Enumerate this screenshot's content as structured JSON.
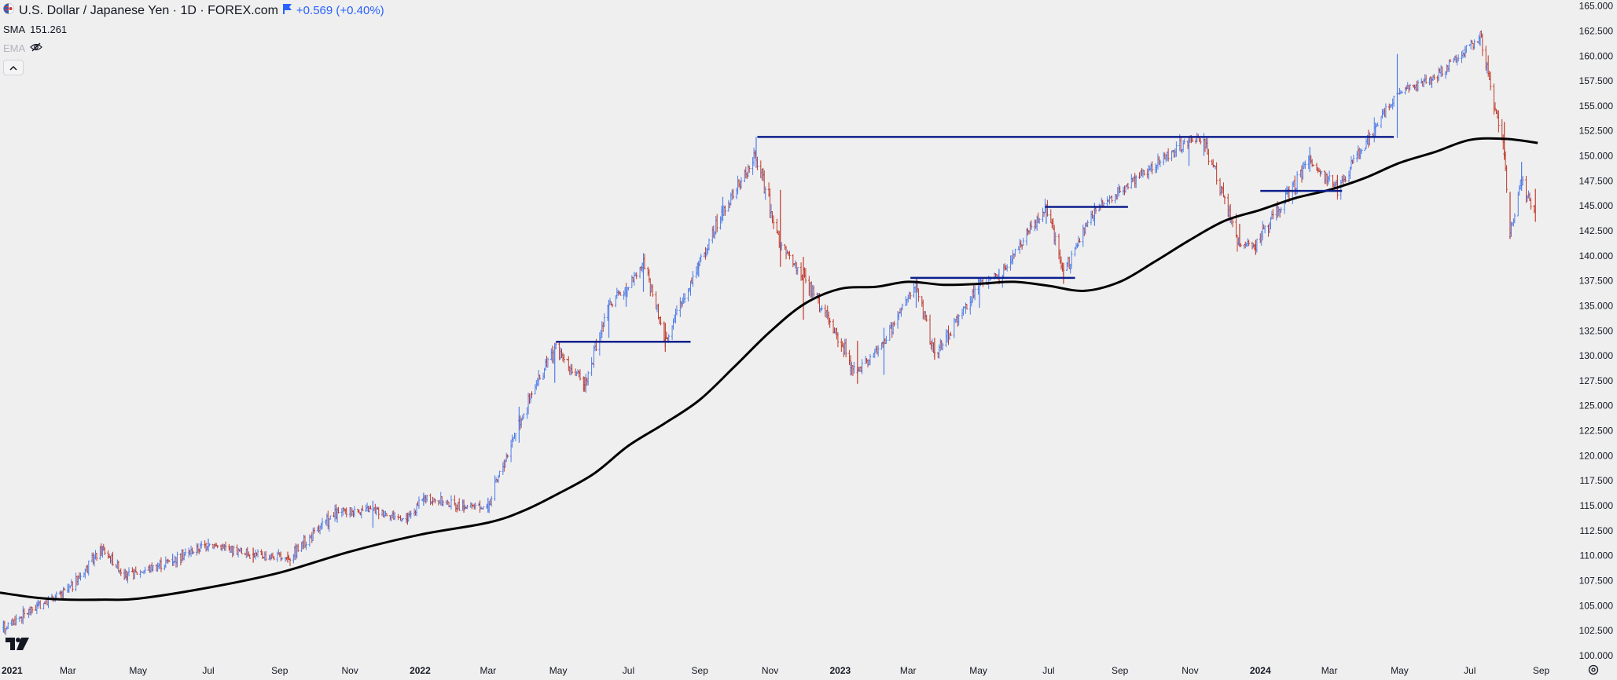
{
  "header": {
    "symbol_title": "U.S. Dollar / Japanese Yen · 1D · FOREX.com",
    "change": "+0.569 (+0.40%)",
    "sma_label": "SMA",
    "sma_value": "151.261",
    "ema_label": "EMA"
  },
  "colors": {
    "background": "#efefef",
    "up_bar": "#4f7de8",
    "down_bar": "#c0392b",
    "sma_line": "#000000",
    "levels": "#0d1f8c",
    "axis_text": "#131722",
    "change_text": "#2962ff"
  },
  "icons": [
    "us-jp-flag-icon",
    "bookmark-flag-icon",
    "eye-off-icon",
    "chevron-up-icon",
    "tradingview-logo-icon",
    "settings-icon"
  ],
  "chart_data": {
    "type": "line",
    "subtype": "ohlc-bars-with-moving-average",
    "title": "U.S. Dollar / Japanese Yen · 1D · FOREX.com",
    "x_tick_labels": [
      "2021",
      "Mar",
      "May",
      "Jul",
      "Sep",
      "Nov",
      "2022",
      "Mar",
      "May",
      "Jul",
      "Sep",
      "Nov",
      "2023",
      "Mar",
      "May",
      "Jul",
      "Sep",
      "Nov",
      "2024",
      "Mar",
      "May",
      "Jul",
      "Sep"
    ],
    "x_tick_dates": [
      "2021-01-01",
      "2021-03-01",
      "2021-05-01",
      "2021-07-01",
      "2021-09-01",
      "2021-11-01",
      "2022-01-01",
      "2022-03-01",
      "2022-05-01",
      "2022-07-01",
      "2022-09-01",
      "2022-11-01",
      "2023-01-01",
      "2023-03-01",
      "2023-05-01",
      "2023-07-01",
      "2023-09-01",
      "2023-11-01",
      "2024-01-01",
      "2024-03-01",
      "2024-05-01",
      "2024-07-01",
      "2024-09-01"
    ],
    "y_tick_labels": [
      "100.000",
      "102.500",
      "105.000",
      "107.500",
      "110.000",
      "112.500",
      "115.000",
      "117.500",
      "120.000",
      "122.500",
      "125.000",
      "127.500",
      "130.000",
      "132.500",
      "135.000",
      "137.500",
      "140.000",
      "142.500",
      "145.000",
      "147.500",
      "150.000",
      "152.500",
      "155.000",
      "157.500",
      "160.000",
      "162.500",
      "165.000"
    ],
    "ylim": [
      99.6,
      165.6
    ],
    "xlim": [
      "2021-01-01",
      "2024-09-02"
    ],
    "price_series": {
      "name": "USDJPY",
      "dates": [
        "2021-01-04",
        "2021-02-03",
        "2021-03-01",
        "2021-03-31",
        "2021-04-21",
        "2021-05-31",
        "2021-07-01",
        "2021-08-09",
        "2021-09-08",
        "2021-10-21",
        "2021-11-21",
        "2021-12-21",
        "2022-01-04",
        "2022-02-08",
        "2022-03-01",
        "2022-03-28",
        "2022-04-28",
        "2022-05-24",
        "2022-06-14",
        "2022-06-29",
        "2022-07-14",
        "2022-08-02",
        "2022-08-31",
        "2022-09-21",
        "2022-10-20",
        "2022-11-10",
        "2022-11-30",
        "2023-01-16",
        "2023-02-08",
        "2023-03-08",
        "2023-03-24",
        "2023-05-02",
        "2023-05-19",
        "2023-06-29",
        "2023-07-14",
        "2023-08-10",
        "2023-09-15",
        "2023-10-31",
        "2023-11-13",
        "2023-12-14",
        "2023-12-28",
        "2024-02-13",
        "2024-03-08",
        "2024-04-10",
        "2024-04-29",
        "2024-05-29",
        "2024-06-27",
        "2024-07-10",
        "2024-07-31",
        "2024-08-05",
        "2024-08-15",
        "2024-08-27"
      ],
      "close": [
        102.8,
        105.0,
        106.5,
        110.7,
        107.9,
        109.6,
        111.2,
        110.1,
        109.8,
        114.3,
        114.6,
        113.6,
        115.7,
        114.9,
        114.9,
        123.5,
        130.8,
        127.1,
        135.0,
        136.8,
        139.2,
        131.6,
        139.2,
        144.4,
        150.1,
        141.0,
        138.0,
        128.3,
        131.4,
        137.2,
        130.0,
        137.2,
        138.1,
        144.9,
        138.2,
        144.6,
        147.8,
        151.6,
        151.6,
        141.1,
        141.0,
        149.6,
        146.8,
        152.8,
        156.2,
        157.6,
        160.6,
        161.8,
        150.2,
        141.9,
        147.6,
        143.9
      ],
      "high": [
        103.5,
        105.6,
        107.2,
        110.9,
        108.5,
        110.2,
        111.7,
        110.8,
        110.4,
        114.7,
        115.5,
        114.3,
        116.3,
        115.6,
        115.8,
        124.9,
        131.2,
        127.9,
        135.6,
        137.0,
        139.4,
        133.3,
        139.5,
        145.9,
        151.9,
        146.6,
        139.9,
        131.5,
        132.8,
        137.9,
        131.8,
        137.8,
        138.7,
        145.0,
        139.3,
        145.3,
        148.0,
        151.7,
        151.9,
        143.2,
        141.6,
        150.9,
        148.1,
        153.3,
        160.2,
        157.7,
        161.0,
        161.9,
        153.4,
        146.4,
        149.4,
        146.7
      ],
      "low": [
        102.3,
        104.9,
        106.3,
        109.8,
        107.5,
        109.1,
        110.4,
        109.3,
        109.3,
        113.3,
        112.8,
        113.1,
        115.0,
        114.3,
        114.3,
        121.3,
        127.3,
        126.4,
        131.8,
        134.9,
        136.4,
        130.4,
        137.9,
        143.5,
        148.8,
        138.9,
        133.6,
        127.2,
        128.1,
        134.8,
        129.6,
        134.8,
        137.8,
        143.2,
        137.2,
        143.0,
        146.8,
        149.0,
        150.0,
        140.9,
        140.2,
        148.4,
        146.5,
        151.9,
        151.8,
        156.8,
        159.8,
        161.0,
        149.6,
        141.7,
        146.5,
        143.4
      ]
    },
    "sma": {
      "label": "SMA",
      "value": "151.261",
      "dates": [
        "2021-01-01",
        "2021-02-01",
        "2021-03-01",
        "2021-04-01",
        "2021-05-01",
        "2021-07-01",
        "2021-09-01",
        "2021-11-01",
        "2022-01-01",
        "2022-03-01",
        "2022-04-01",
        "2022-05-01",
        "2022-06-01",
        "2022-07-01",
        "2022-08-01",
        "2022-09-01",
        "2022-10-01",
        "2022-11-01",
        "2022-12-01",
        "2023-01-01",
        "2023-02-01",
        "2023-03-01",
        "2023-04-01",
        "2023-05-01",
        "2023-06-01",
        "2023-07-01",
        "2023-08-01",
        "2023-09-01",
        "2023-10-01",
        "2023-11-01",
        "2023-12-01",
        "2024-01-01",
        "2024-02-01",
        "2024-03-01",
        "2024-04-01",
        "2024-05-01",
        "2024-06-01",
        "2024-07-01",
        "2024-08-01",
        "2024-08-29"
      ],
      "values": [
        106.3,
        105.8,
        105.6,
        105.6,
        105.7,
        106.8,
        108.3,
        110.4,
        112.1,
        113.3,
        114.5,
        116.2,
        118.2,
        121.0,
        123.2,
        125.6,
        128.9,
        132.4,
        135.2,
        136.7,
        136.9,
        137.4,
        137.1,
        137.2,
        137.4,
        137.0,
        136.5,
        137.4,
        139.4,
        141.6,
        143.5,
        144.6,
        145.8,
        146.6,
        147.8,
        149.3,
        150.4,
        151.6,
        151.7,
        151.3
      ]
    },
    "horizontal_levels": [
      {
        "start": "2022-04-29",
        "end": "2022-08-24",
        "value": 131.4
      },
      {
        "start": "2022-10-21",
        "end": "2024-04-26",
        "value": 151.9
      },
      {
        "start": "2023-03-03",
        "end": "2023-07-24",
        "value": 137.8
      },
      {
        "start": "2023-06-28",
        "end": "2023-09-08",
        "value": 144.9
      },
      {
        "start": "2024-01-01",
        "end": "2024-03-12",
        "value": 146.5
      }
    ],
    "grid": false,
    "legend_position": "top-left"
  }
}
